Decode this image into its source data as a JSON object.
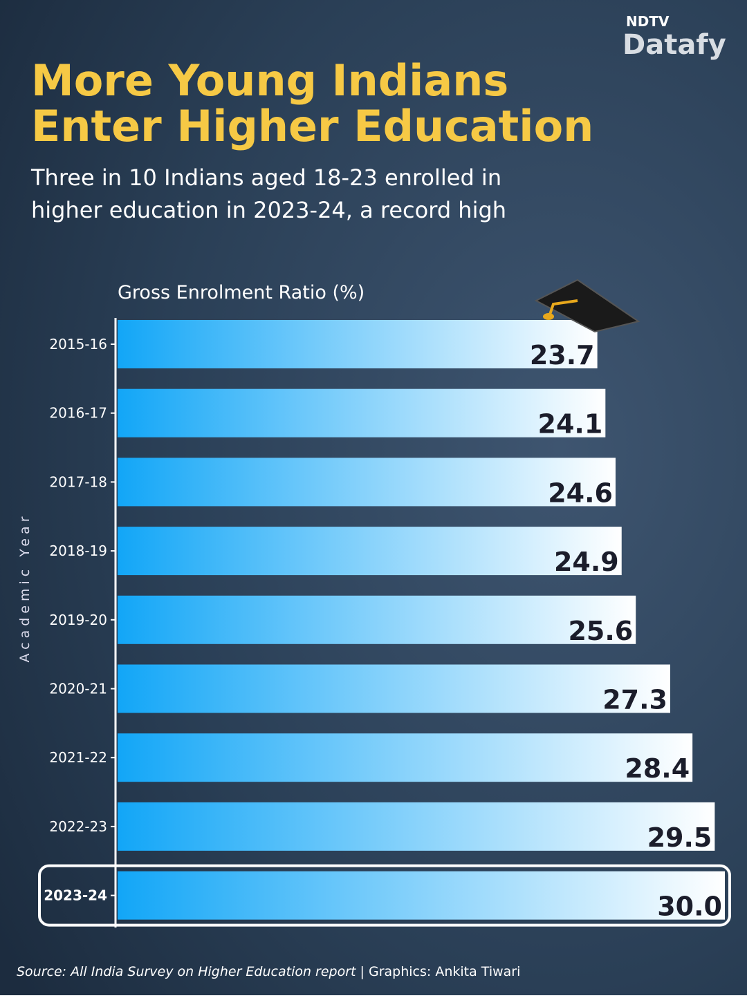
{
  "brand": {
    "top": "NDTV",
    "name": "Datafy"
  },
  "chart_data": {
    "type": "bar",
    "orientation": "horizontal",
    "title": [
      "More Young Indians",
      "Enter Higher Education"
    ],
    "subtitle": [
      "Three in 10 Indians aged 18-23 enrolled in",
      "higher education in 2023-24, a record high"
    ],
    "value_axis_label": "Gross Enrolment Ratio (%)",
    "category_axis_label": "Academic Year",
    "categories": [
      "2015-16",
      "2016-17",
      "2017-18",
      "2018-19",
      "2019-20",
      "2020-21",
      "2021-22",
      "2022-23",
      "2023-24"
    ],
    "values": [
      23.7,
      24.1,
      24.6,
      24.9,
      25.6,
      27.3,
      28.4,
      29.5,
      30.0
    ],
    "value_labels": [
      "23.7",
      "24.1",
      "24.6",
      "24.9",
      "25.6",
      "27.3",
      "28.4",
      "29.5",
      "30.0"
    ],
    "color": [
      "#12a6f7",
      "#ffffff"
    ],
    "highlight": 8
  },
  "source": {
    "text": "Source: All India Survey on Higher Education report",
    "credit": " | Graphics: Ankita Tiwari"
  }
}
